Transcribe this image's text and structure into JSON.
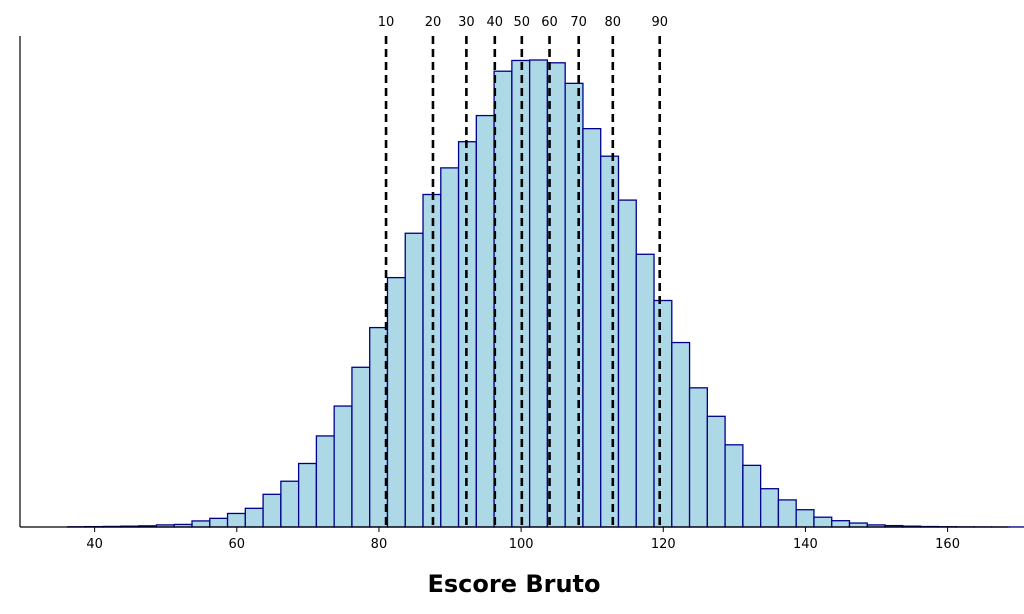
{
  "chart_data": {
    "type": "bar",
    "subtype": "histogram",
    "xlabel": "Escore Bruto",
    "ylabel": "",
    "xlim": [
      29.5,
      168.5
    ],
    "ylim": [
      0,
      100
    ],
    "y_axis_visible": false,
    "grid": false,
    "bin_width": 2.5,
    "bin_start": 36.2,
    "heights": [
      0.05,
      0.08,
      0.12,
      0.18,
      0.25,
      0.45,
      0.55,
      1.3,
      1.85,
      2.9,
      4.0,
      7.0,
      9.8,
      13.6,
      19.5,
      25.9,
      34.2,
      42.7,
      53.4,
      62.9,
      71.2,
      76.9,
      82.5,
      88.1,
      97.6,
      99.9,
      100.0,
      99.4,
      95.0,
      85.3,
      79.4,
      70.0,
      58.4,
      48.5,
      39.5,
      29.8,
      23.7,
      17.6,
      13.2,
      8.2,
      5.8,
      3.7,
      2.1,
      1.35,
      0.85,
      0.45,
      0.3,
      0.18,
      0.1,
      0.06,
      0.03,
      0.02,
      0.01,
      0.01
    ],
    "x_ticks": [
      40,
      60,
      80,
      100,
      120,
      140,
      160
    ],
    "percentile_lines": [
      {
        "label": "10",
        "x": 81.0
      },
      {
        "label": "20",
        "x": 87.6
      },
      {
        "label": "30",
        "x": 92.3
      },
      {
        "label": "40",
        "x": 96.3
      },
      {
        "label": "50",
        "x": 100.1
      },
      {
        "label": "60",
        "x": 104.0
      },
      {
        "label": "70",
        "x": 108.1
      },
      {
        "label": "80",
        "x": 112.9
      },
      {
        "label": "90",
        "x": 119.5
      }
    ],
    "colors": {
      "bar_fill": "#add8e6",
      "bar_edge": "#00008b",
      "lines": "#000000",
      "axis": "#000000"
    }
  }
}
